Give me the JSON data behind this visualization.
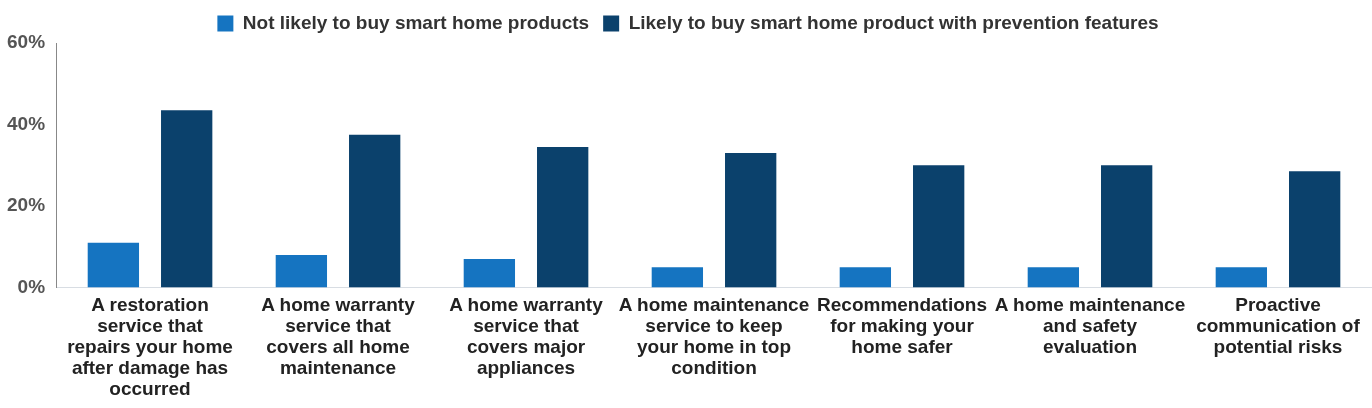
{
  "chart_data": {
    "type": "bar",
    "categories": [
      "A restoration service that repairs your home after damage has occurred",
      "A home warranty service that covers all home maintenance",
      "A home warranty service that covers major appliances",
      "A home maintenance service to keep your home in top condition",
      "Recommendations for making your home safer",
      "A home maintenance and safety evaluation",
      "Proactive communication of potential risks"
    ],
    "series": [
      {
        "name": "Not likely to buy smart home products",
        "color": "#1574c1",
        "values": [
          11,
          8,
          7,
          5,
          5,
          5,
          5
        ]
      },
      {
        "name": "Likely to buy smart home product with prevention features",
        "color": "#0b416c",
        "values": [
          43.5,
          37.5,
          34.5,
          33,
          30,
          30,
          28.5
        ]
      }
    ],
    "ylim": [
      0,
      60
    ],
    "yticks": [
      {
        "value": 0,
        "label": "0%"
      },
      {
        "value": 20,
        "label": "20%"
      },
      {
        "value": 40,
        "label": "40%"
      },
      {
        "value": 60,
        "label": "60%"
      }
    ],
    "grid": false,
    "legend": "top"
  }
}
